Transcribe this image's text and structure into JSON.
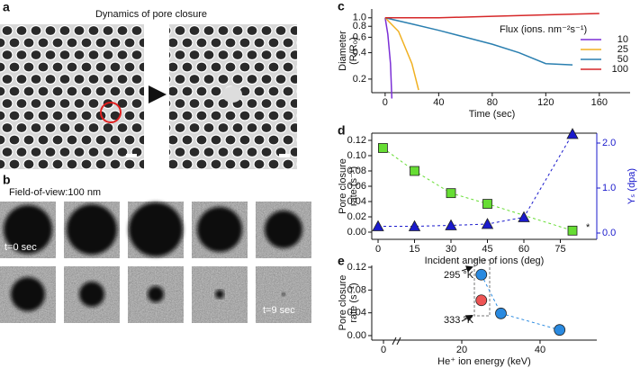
{
  "panel_labels": [
    "a",
    "b",
    "c",
    "d",
    "e"
  ],
  "panel_a": {
    "title": "Dynamics of pore closure"
  },
  "panel_b": {
    "caption": "Field-of-view:100 nm",
    "time_start": "t=0 sec",
    "time_end": "t=9 sec"
  },
  "chart_data": [
    {
      "type": "line",
      "xlabel": "Time (sec)",
      "ylabel": [
        "Diameter",
        "(R/R₀)"
      ],
      "ylog": true,
      "xlim": [
        -10,
        183
      ],
      "ylim": [
        0.14,
        1.26
      ],
      "xticks": [
        0,
        40,
        80,
        120,
        160
      ],
      "yticks": [
        0.2,
        0.4,
        0.6,
        0.8,
        {
          "value": 1,
          "label": "1.0"
        }
      ],
      "legend_title": "Flux (ions. nm⁻²s⁻¹)",
      "legend": "right",
      "series": [
        {
          "name": "10",
          "color": "#7b2fd6",
          "x": [
            0,
            2,
            4,
            5
          ],
          "values": [
            1.0,
            0.65,
            0.3,
            0.12
          ]
        },
        {
          "name": "25",
          "color": "#f0b020",
          "x": [
            0,
            10,
            20,
            25
          ],
          "values": [
            1.0,
            0.7,
            0.3,
            0.15
          ]
        },
        {
          "name": "50",
          "color": "#2a7fb0",
          "x": [
            0,
            20,
            40,
            60,
            80,
            100,
            120,
            140
          ],
          "values": [
            1.0,
            0.85,
            0.72,
            0.6,
            0.5,
            0.4,
            0.3,
            0.29
          ]
        },
        {
          "name": "100",
          "color": "#d62728",
          "x": [
            0,
            40,
            80,
            120,
            160
          ],
          "values": [
            1.0,
            1.0,
            1.04,
            1.08,
            1.12
          ]
        }
      ]
    },
    {
      "type": "scatter",
      "xlabel": "Incident angle of ions (deg)",
      "ylabel": [
        "Pore closure",
        "rate (s⁻¹)"
      ],
      "y2label": "Yₛ (dpa)",
      "xlim": [
        -2.6,
        90
      ],
      "ylim": [
        -0.0094,
        0.1294
      ],
      "y2lim": [
        -0.14,
        2.22
      ],
      "xticks": [
        0,
        15,
        30,
        45,
        60,
        75
      ],
      "yticks": [
        {
          "value": 0,
          "label": "0.00"
        },
        {
          "value": 0.02,
          "label": "0.02"
        },
        {
          "value": 0.04,
          "label": "0.04"
        },
        {
          "value": 0.06,
          "label": "0.06"
        },
        {
          "value": 0.08,
          "label": "0.08"
        },
        {
          "value": 0.1,
          "label": "0.10"
        },
        {
          "value": 0.12,
          "label": "0.12"
        }
      ],
      "y2ticks": [
        {
          "value": 0,
          "label": "0.0"
        },
        {
          "value": 1,
          "label": "1.0"
        },
        {
          "value": 2,
          "label": "2.0"
        }
      ],
      "y2color": "#1a1acc",
      "annotations": [
        "*"
      ],
      "series": [
        {
          "color": "#66dd33",
          "marker": "square",
          "line": "dashed",
          "x": [
            2,
            15,
            30,
            45,
            80
          ],
          "values": [
            0.11,
            0.08,
            0.051,
            0.037,
            0.002
          ]
        },
        {
          "color": "#1a1acc",
          "marker": "triangle",
          "line": "dashed",
          "axis": "y2",
          "x": [
            0,
            15,
            30,
            45,
            60,
            80
          ],
          "values": [
            0.15,
            0.15,
            0.17,
            0.2,
            0.35,
            2.2
          ]
        }
      ]
    },
    {
      "type": "scatter",
      "xlabel": "He⁺ ion energy (keV)",
      "ylabel": [
        "Pore closure",
        "rate (s⁻¹)"
      ],
      "xlim": [
        -3,
        54.5
      ],
      "ylim": [
        -0.0079,
        0.1232
      ],
      "xticks": [
        0,
        20,
        40
      ],
      "yticks": [
        {
          "value": 0,
          "label": "0.00"
        },
        {
          "value": 0.04,
          "label": "0.04"
        },
        {
          "value": 0.08,
          "label": "0.08"
        },
        {
          "value": 0.12,
          "label": "0.12"
        }
      ],
      "annotations": [
        "295 °K",
        "333 °K"
      ],
      "series": [
        {
          "color": "#2a8ae0",
          "marker": "circle",
          "line": "dashed",
          "x": [
            25,
            30,
            45
          ],
          "values": [
            0.107,
            0.039,
            0.01
          ]
        },
        {
          "color": "#ee5555",
          "marker": "circle",
          "x": [
            25
          ],
          "values": [
            0.062
          ]
        }
      ]
    }
  ]
}
